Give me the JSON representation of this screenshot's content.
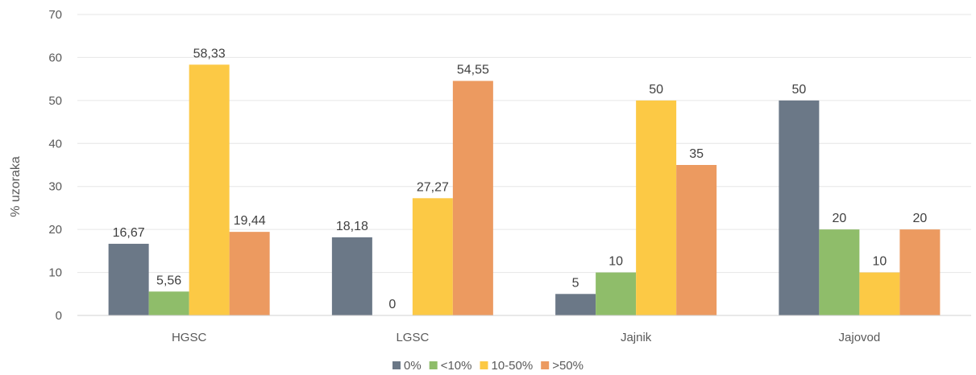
{
  "chart_data": {
    "type": "bar",
    "title": "",
    "xlabel": "",
    "ylabel": "% uzoraka",
    "ylim": [
      0,
      70
    ],
    "yticks": [
      "0",
      "10",
      "20",
      "30",
      "40",
      "50",
      "60",
      "70"
    ],
    "grid": true,
    "legend_position": "bottom",
    "categories": [
      "HGSC",
      "LGSC",
      "Jajnik",
      "Jajovod"
    ],
    "series": [
      {
        "name": "0%",
        "color": "#6b7887",
        "values": [
          16.67,
          18.18,
          5,
          50
        ],
        "labels": [
          "16,67",
          "18,18",
          "5",
          "50"
        ]
      },
      {
        "name": "<10%",
        "color": "#8fbd6a",
        "values": [
          5.56,
          0,
          10,
          20
        ],
        "labels": [
          "5,56",
          "0",
          "10",
          "20"
        ]
      },
      {
        "name": "10-50%",
        "color": "#fcc945",
        "values": [
          58.33,
          27.27,
          50,
          10
        ],
        "labels": [
          "58,33",
          "27,27",
          "50",
          "10"
        ]
      },
      {
        "name": ">50%",
        "color": "#ec9a60",
        "values": [
          19.44,
          54.55,
          35,
          20
        ],
        "labels": [
          "19,44",
          "54,55",
          "35",
          "20"
        ]
      }
    ]
  }
}
